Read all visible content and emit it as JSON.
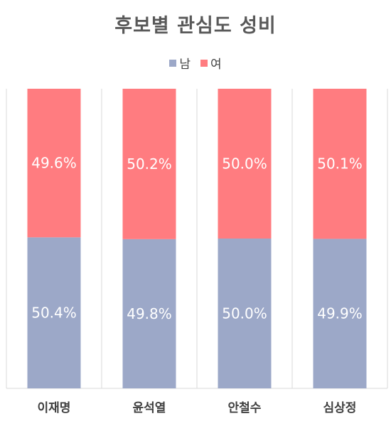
{
  "chart_data": {
    "type": "bar",
    "stacked": true,
    "normalized": true,
    "title": "후보별 관심도 성비",
    "categories": [
      "이재명",
      "윤석열",
      "안철수",
      "심상정"
    ],
    "series": [
      {
        "name": "남",
        "color": "#9CA8C8",
        "values": [
          50.4,
          49.8,
          50.0,
          49.9
        ],
        "labels": [
          "50.4%",
          "49.8%",
          "50.0%",
          "49.9%"
        ]
      },
      {
        "name": "여",
        "color": "#FF7C80",
        "values": [
          49.6,
          50.2,
          50.0,
          50.1
        ],
        "labels": [
          "49.6%",
          "50.2%",
          "50.0%",
          "50.1%"
        ]
      }
    ],
    "ylim": [
      0,
      100
    ],
    "legend_position": "top",
    "grid": false
  }
}
